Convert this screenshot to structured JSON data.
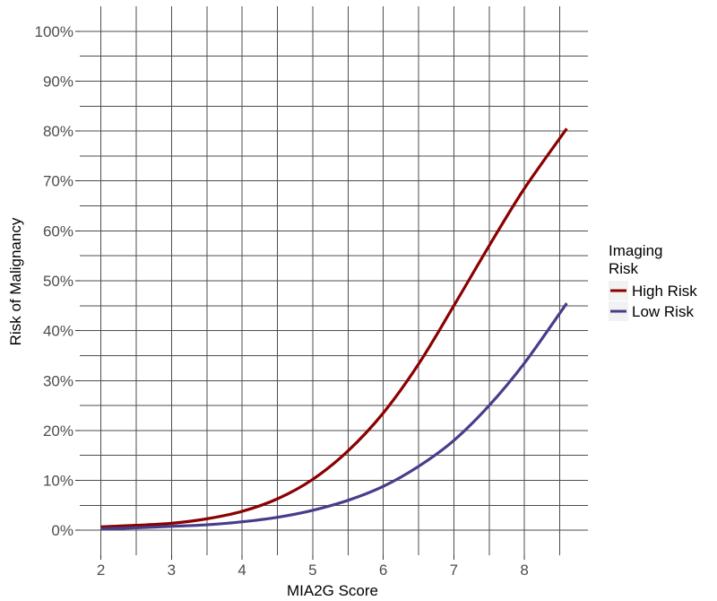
{
  "chart_data": {
    "type": "line",
    "xlabel": "MIA2G Score",
    "ylabel": "Risk of Malignancy",
    "xlim": [
      1.7,
      8.9
    ],
    "ylim": [
      -0.05,
      1.05
    ],
    "x_ticks": [
      2,
      3,
      4,
      5,
      6,
      7,
      8
    ],
    "x_tick_labels": [
      "2",
      "3",
      "4",
      "5",
      "6",
      "7",
      "8"
    ],
    "y_ticks": [
      0,
      0.1,
      0.2,
      0.3,
      0.4,
      0.5,
      0.6,
      0.7,
      0.8,
      0.9,
      1.0
    ],
    "y_tick_labels": [
      "0%",
      "10%",
      "20%",
      "30%",
      "40%",
      "50%",
      "60%",
      "70%",
      "80%",
      "90%",
      "100%"
    ],
    "grid": true,
    "legend": {
      "title_lines": [
        "Imaging",
        "Risk"
      ],
      "position": "right"
    },
    "series": [
      {
        "name": "High Risk",
        "color": "#8b0000",
        "x": [
          2.0,
          2.5,
          3.0,
          3.5,
          4.0,
          4.5,
          5.0,
          5.5,
          6.0,
          6.5,
          7.0,
          7.5,
          8.0,
          8.6
        ],
        "values": [
          0.007,
          0.01,
          0.014,
          0.023,
          0.038,
          0.063,
          0.102,
          0.159,
          0.235,
          0.333,
          0.45,
          0.57,
          0.685,
          0.805
        ]
      },
      {
        "name": "Low Risk",
        "color": "#483d8b",
        "x": [
          2.0,
          2.5,
          3.0,
          3.5,
          4.0,
          4.5,
          5.0,
          5.5,
          6.0,
          6.5,
          7.0,
          7.5,
          8.0,
          8.6
        ],
        "values": [
          0.003,
          0.005,
          0.008,
          0.011,
          0.017,
          0.026,
          0.04,
          0.06,
          0.088,
          0.128,
          0.18,
          0.25,
          0.335,
          0.455
        ]
      }
    ]
  }
}
